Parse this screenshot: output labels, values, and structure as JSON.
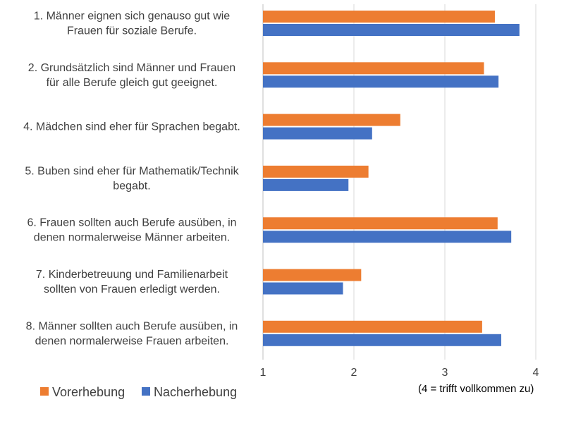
{
  "chart_data": {
    "type": "bar",
    "orientation": "horizontal",
    "categories": [
      [
        "1. Männer eignen sich genauso gut wie",
        "Frauen für soziale Berufe."
      ],
      [
        "2. Grundsätzlich sind Männer und Frauen",
        "für alle Berufe gleich gut geeignet."
      ],
      [
        "4. Mädchen sind eher für Sprachen begabt."
      ],
      [
        "5. Buben sind eher für Mathematik/Technik",
        "begabt."
      ],
      [
        "6. Frauen sollten auch Berufe ausüben, in",
        "denen normalerweise Männer arbeiten."
      ],
      [
        "7. Kinderbetreuung und Familienarbeit",
        "sollten von Frauen erledigt werden."
      ],
      [
        "8. Männer sollten auch Berufe ausüben, in",
        "denen normalerweise Frauen arbeiten."
      ]
    ],
    "series": [
      {
        "name": "Vorerhebung",
        "color": "#ED7D31",
        "values": [
          3.55,
          3.43,
          2.51,
          2.16,
          3.58,
          2.08,
          3.41
        ]
      },
      {
        "name": "Nacherhebung",
        "color": "#4472C4",
        "values": [
          3.82,
          3.59,
          2.2,
          1.94,
          3.73,
          1.88,
          3.62
        ]
      }
    ],
    "xlim": [
      1,
      4
    ],
    "xticks": [
      "1",
      "2",
      "3",
      "4"
    ],
    "grid": true,
    "legend_position": "bottom-left",
    "axis_note": "(4 = trifft vollkommen zu)"
  }
}
